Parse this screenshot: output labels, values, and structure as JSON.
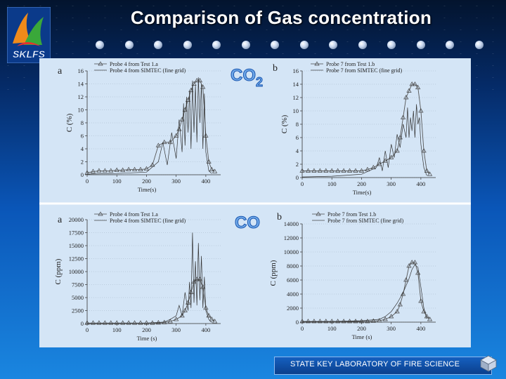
{
  "slide": {
    "title": "Comparison of Gas concentration",
    "footer": "STATE KEY LABORATORY OF FIRE SCIENCE",
    "logo_text": "SKLFS",
    "bullet_count": 14
  },
  "gas_labels": {
    "co2": "CO",
    "co2_sub": "2",
    "co": "CO"
  },
  "colors": {
    "panel_background": "#d4e5f6",
    "title_text": "#ffffff",
    "test_line": "#555555",
    "sim_line": "#333333"
  },
  "chart_data": [
    {
      "type": "line",
      "panel_label": "a",
      "xlabel": "Time(s)",
      "ylabel": "C (%)",
      "xlim": [
        0,
        450
      ],
      "ylim": [
        0,
        16
      ],
      "xticks": [
        0,
        100,
        200,
        300,
        400
      ],
      "yticks": [
        0,
        2,
        4,
        6,
        8,
        10,
        12,
        14,
        16
      ],
      "series": [
        {
          "name": "Probe 4 from Test 1.a",
          "marker": "triangle",
          "x": [
            0,
            20,
            40,
            60,
            80,
            100,
            120,
            140,
            160,
            180,
            200,
            220,
            240,
            260,
            280,
            300,
            310,
            320,
            330,
            340,
            350,
            360,
            370,
            380,
            390,
            400,
            410,
            420,
            430
          ],
          "y": [
            0.3,
            0.5,
            0.6,
            0.6,
            0.6,
            0.7,
            0.7,
            0.8,
            0.8,
            0.8,
            0.9,
            1.5,
            4.5,
            5.0,
            5.0,
            6.0,
            7.0,
            8.5,
            10.0,
            11.5,
            13.0,
            14.0,
            14.5,
            14.5,
            13.5,
            6.0,
            2.0,
            0.8,
            0.5
          ]
        },
        {
          "name": "Probe 4 from SIMTEC (fine grid)",
          "marker": "none",
          "x": [
            0,
            100,
            200,
            240,
            255,
            270,
            285,
            300,
            310,
            320,
            325,
            330,
            335,
            340,
            345,
            350,
            355,
            360,
            365,
            370,
            375,
            380,
            385,
            390,
            395,
            400,
            410,
            420
          ],
          "y": [
            0.1,
            0.2,
            0.4,
            2.0,
            5.0,
            1.5,
            6.5,
            2.5,
            8.5,
            3.5,
            11.0,
            4.5,
            12.0,
            6.5,
            13.0,
            4.0,
            14.5,
            6.5,
            13.8,
            5.0,
            15.0,
            8.0,
            14.0,
            4.0,
            12.5,
            3.5,
            0.6,
            0.2
          ]
        }
      ]
    },
    {
      "type": "line",
      "panel_label": "b",
      "xlabel": "Time(s)",
      "ylabel": "C (%)",
      "xlim": [
        0,
        450
      ],
      "ylim": [
        0,
        16
      ],
      "xticks": [
        0,
        100,
        200,
        300,
        400
      ],
      "yticks": [
        0,
        2,
        4,
        6,
        8,
        10,
        12,
        14,
        16
      ],
      "series": [
        {
          "name": "Probe 7 from Test 1.b",
          "marker": "triangle",
          "x": [
            0,
            20,
            40,
            60,
            80,
            100,
            120,
            140,
            160,
            180,
            200,
            220,
            240,
            260,
            280,
            300,
            320,
            330,
            340,
            350,
            360,
            370,
            380,
            390,
            400,
            410,
            420,
            430
          ],
          "y": [
            1.0,
            1.0,
            1.0,
            1.0,
            1.0,
            1.0,
            1.0,
            1.0,
            1.0,
            1.0,
            1.0,
            1.2,
            1.5,
            2.0,
            2.5,
            3.0,
            4.0,
            6.0,
            9.0,
            12.0,
            13.0,
            14.0,
            14.0,
            13.5,
            10.0,
            4.0,
            1.0,
            0.5
          ]
        },
        {
          "name": "Probe 7 from SIMTEC (fine grid)",
          "marker": "none",
          "x": [
            0,
            100,
            200,
            250,
            260,
            270,
            280,
            290,
            300,
            310,
            320,
            330,
            340,
            350,
            355,
            360,
            365,
            370,
            375,
            380,
            385,
            390,
            395,
            400,
            410,
            420
          ],
          "y": [
            0.1,
            0.2,
            0.5,
            1.5,
            3.0,
            1.0,
            4.0,
            1.5,
            5.0,
            3.0,
            6.5,
            4.5,
            8.0,
            6.0,
            10.5,
            6.0,
            9.0,
            7.0,
            10.0,
            6.0,
            11.0,
            8.0,
            9.0,
            5.0,
            1.5,
            0.3
          ]
        }
      ]
    },
    {
      "type": "line",
      "panel_label": "a",
      "xlabel": "Time (s)",
      "ylabel": "C (ppm)",
      "xlim": [
        0,
        450
      ],
      "ylim": [
        0,
        20000
      ],
      "xticks": [
        0,
        100,
        200,
        300,
        400
      ],
      "yticks": [
        0,
        2500,
        5000,
        7500,
        10000,
        12500,
        15000,
        17500,
        20000
      ],
      "series": [
        {
          "name": "Probe 4 from Test 1.a",
          "marker": "triangle",
          "x": [
            0,
            20,
            40,
            60,
            80,
            100,
            120,
            140,
            160,
            180,
            200,
            220,
            240,
            260,
            280,
            300,
            320,
            330,
            340,
            350,
            360,
            370,
            380,
            390,
            400,
            410,
            420,
            430
          ],
          "y": [
            100,
            100,
            100,
            100,
            100,
            100,
            100,
            100,
            100,
            100,
            100,
            100,
            150,
            200,
            400,
            800,
            1500,
            2500,
            4000,
            6000,
            8000,
            8500,
            8500,
            7000,
            3000,
            1500,
            800,
            400
          ]
        },
        {
          "name": "Probe 4 from SIMTEC (fine grid)",
          "marker": "none",
          "x": [
            0,
            100,
            200,
            260,
            280,
            300,
            310,
            320,
            330,
            340,
            345,
            350,
            355,
            360,
            365,
            370,
            375,
            380,
            385,
            390,
            395,
            400,
            410,
            420
          ],
          "y": [
            0,
            50,
            100,
            300,
            800,
            1500,
            3500,
            1500,
            6000,
            2500,
            8000,
            3000,
            17500,
            4000,
            12000,
            3500,
            15500,
            4500,
            13000,
            3000,
            9000,
            2500,
            800,
            200
          ]
        }
      ]
    },
    {
      "type": "line",
      "panel_label": "b",
      "xlabel": "Time (s)",
      "ylabel": "C (ppm)",
      "xlim": [
        0,
        450
      ],
      "ylim": [
        0,
        14000
      ],
      "xticks": [
        0,
        100,
        200,
        300,
        400
      ],
      "yticks": [
        0,
        2000,
        4000,
        6000,
        8000,
        10000,
        12000,
        14000
      ],
      "series": [
        {
          "name": "Probe 7 from Test 1.b",
          "marker": "triangle",
          "x": [
            0,
            20,
            40,
            60,
            80,
            100,
            120,
            140,
            160,
            180,
            200,
            220,
            240,
            260,
            280,
            300,
            320,
            330,
            340,
            350,
            360,
            370,
            380,
            390,
            400,
            410,
            420,
            430
          ],
          "y": [
            100,
            100,
            100,
            100,
            100,
            100,
            100,
            100,
            100,
            100,
            100,
            100,
            150,
            200,
            400,
            800,
            1500,
            2500,
            4000,
            6000,
            8000,
            8500,
            8500,
            7000,
            3000,
            1500,
            800,
            400
          ]
        },
        {
          "name": "Probe 7 from SIMTEC (fine grid)",
          "marker": "none",
          "x": [
            0,
            100,
            200,
            260,
            280,
            300,
            320,
            340,
            360,
            370,
            380,
            390,
            400,
            410,
            420
          ],
          "y": [
            0,
            100,
            200,
            400,
            800,
            1500,
            2700,
            4200,
            6200,
            7500,
            8200,
            7800,
            5000,
            2000,
            500
          ]
        }
      ]
    }
  ]
}
